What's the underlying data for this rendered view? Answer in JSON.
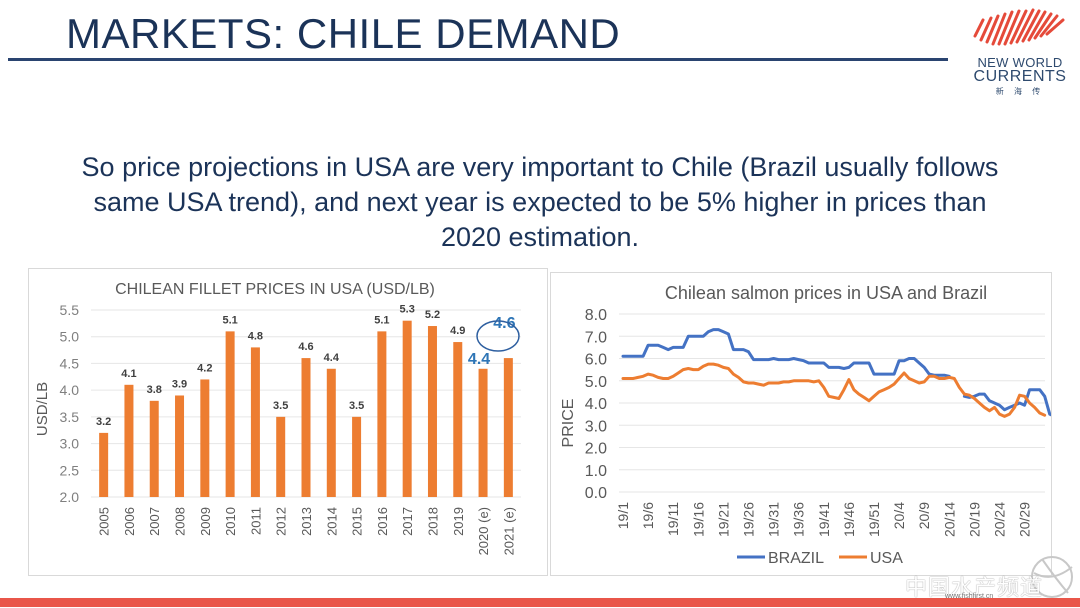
{
  "slide": {
    "title": "MARKETS: CHILE DEMAND",
    "logo": {
      "line1": "NEW WORLD",
      "line2": "CURRENTS",
      "line3": "新 海 传",
      "icon": "fish-stripes-icon"
    },
    "body_lines": [
      "So price projections in USA are very important to Chile (Brazil usually follows",
      "same USA trend), and next year is expected to be 5% higher in prices than",
      "2020 estimation."
    ],
    "watermark": {
      "text": "中国水产频道",
      "url": "www.fishfirst.cn",
      "icon": "globe-icon"
    },
    "colors": {
      "title": "#1b3358",
      "bar": "#ed7d31",
      "brazil": "#4472c4",
      "usa": "#ed7d31",
      "highlight": "#2e75b6",
      "stripe": "#e9564a"
    }
  },
  "chart_data": [
    {
      "type": "bar",
      "title": "CHILEAN FILLET PRICES IN USA (USD/LB)",
      "xlabel": "",
      "ylabel": "USD/LB",
      "ylim": [
        2.0,
        5.5
      ],
      "yticks": [
        "2.0",
        "2.5",
        "3.0",
        "3.5",
        "4.0",
        "4.5",
        "5.0",
        "5.5"
      ],
      "grid": true,
      "categories": [
        "2005",
        "2006",
        "2007",
        "2008",
        "2009",
        "2010",
        "2011",
        "2012",
        "2013",
        "2014",
        "2015",
        "2016",
        "2017",
        "2018",
        "2019",
        "2020 (e)",
        "2021 (e)"
      ],
      "values": [
        3.2,
        4.1,
        3.8,
        3.9,
        4.2,
        5.1,
        4.8,
        3.5,
        4.6,
        4.4,
        3.5,
        5.1,
        5.3,
        5.2,
        4.9,
        4.4,
        4.6
      ],
      "labels": [
        "3.2",
        "4.1",
        "3.8",
        "3.9",
        "4.2",
        "5.1",
        "4.8",
        "3.5",
        "4.6",
        "4.4",
        "3.5",
        "5.1",
        "5.3",
        "5.2",
        "4.9",
        "4.4",
        "4.6"
      ],
      "highlighted": {
        "2020 (e)": "4.4",
        "2021 (e) circled": "4.6"
      }
    },
    {
      "type": "line",
      "title": "Chilean salmon prices in USA and Brazil",
      "xlabel": "",
      "ylabel": "PRICE",
      "ylim": [
        0.0,
        8.0
      ],
      "yticks": [
        "0.0",
        "1.0",
        "2.0",
        "3.0",
        "4.0",
        "5.0",
        "6.0",
        "7.0",
        "8.0"
      ],
      "grid": true,
      "legend_position": "bottom",
      "xtick_labels": [
        "19/1",
        "19/6",
        "19/11",
        "19/16",
        "19/21",
        "19/26",
        "19/31",
        "19/36",
        "19/41",
        "19/46",
        "19/51",
        "20/4",
        "20/9",
        "20/14",
        "20/19",
        "20/24",
        "20/29"
      ],
      "xtick_index": [
        0,
        5,
        10,
        15,
        20,
        25,
        30,
        35,
        40,
        45,
        50,
        55,
        60,
        65,
        70,
        75,
        80
      ],
      "series": [
        {
          "name": "BRAZIL",
          "values": [
            6.1,
            6.1,
            6.1,
            6.1,
            6.1,
            6.6,
            6.6,
            6.6,
            6.5,
            6.4,
            6.5,
            6.5,
            6.5,
            7.0,
            7.0,
            7.0,
            7.0,
            7.2,
            7.3,
            7.3,
            7.2,
            7.1,
            6.4,
            6.4,
            6.4,
            6.3,
            5.95,
            5.95,
            5.95,
            5.95,
            6.0,
            5.95,
            5.95,
            5.95,
            6.0,
            5.95,
            5.9,
            5.8,
            5.8,
            5.8,
            5.8,
            5.6,
            5.6,
            5.6,
            5.55,
            5.6,
            5.8,
            5.8,
            5.8,
            5.8,
            5.3,
            5.3,
            5.3,
            5.3,
            5.3,
            5.9,
            5.9,
            6.0,
            6.0,
            5.8,
            5.6,
            5.3,
            5.25,
            5.25,
            5.25,
            5.2,
            null,
            null,
            4.3,
            4.25,
            4.3,
            4.4,
            4.4,
            4.1,
            4.0,
            3.9,
            3.7,
            3.8,
            3.9,
            4.0,
            3.9,
            4.6,
            4.6,
            4.6,
            4.3,
            3.5,
            3.4
          ]
        },
        {
          "name": "USA",
          "values": [
            5.1,
            5.1,
            5.1,
            5.15,
            5.2,
            5.3,
            5.25,
            5.15,
            5.1,
            5.1,
            5.2,
            5.35,
            5.5,
            5.55,
            5.5,
            5.5,
            5.65,
            5.75,
            5.75,
            5.7,
            5.6,
            5.55,
            5.3,
            5.15,
            4.95,
            4.9,
            4.9,
            4.85,
            4.8,
            4.9,
            4.9,
            4.9,
            4.95,
            4.95,
            5.0,
            5.0,
            5.0,
            5.0,
            4.95,
            5.0,
            4.7,
            4.3,
            4.25,
            4.2,
            4.6,
            5.05,
            4.6,
            4.4,
            4.25,
            4.1,
            4.3,
            4.5,
            4.6,
            4.7,
            4.85,
            5.1,
            5.35,
            5.1,
            5.0,
            4.9,
            4.95,
            5.2,
            5.2,
            5.1,
            5.1,
            5.15,
            5.1,
            4.7,
            4.4,
            4.35,
            4.2,
            4.0,
            3.8,
            3.65,
            3.8,
            3.5,
            3.4,
            3.5,
            3.8,
            4.35,
            4.3,
            4.0,
            3.8,
            3.55,
            3.45
          ]
        }
      ]
    }
  ]
}
